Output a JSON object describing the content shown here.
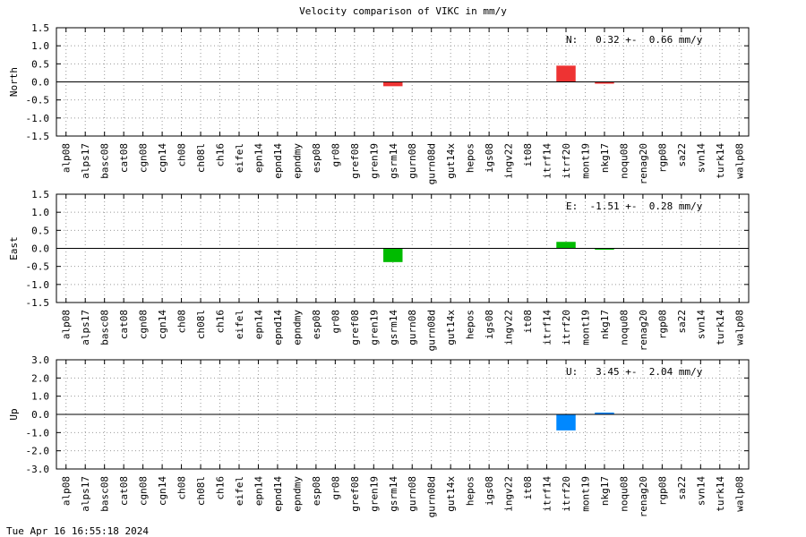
{
  "title": "Velocity comparison of VIKC in mm/y",
  "timestamp": "Tue Apr 16 16:55:18 2024",
  "chart_data": [
    {
      "type": "bar",
      "ylabel": "North",
      "ylim": [
        -1.5,
        1.5
      ],
      "yticks": [
        "1.5",
        "1.0",
        "0.5",
        "0.0",
        "-0.5",
        "-1.0",
        "-1.5"
      ],
      "grid": true,
      "annotation": "N:   0.32 +-  0.66 mm/y",
      "color": "#ee3333",
      "categories": [
        "alp08",
        "alps17",
        "basc08",
        "cat08",
        "cgn08",
        "cgn14",
        "ch08",
        "ch08l",
        "ch16",
        "eifel",
        "epn14",
        "epnd14",
        "epndmy",
        "esp08",
        "gr08",
        "gref08",
        "gren19",
        "gsrm14",
        "gurn08",
        "gurn08d",
        "gut14x",
        "hepos",
        "igs08",
        "ingv22",
        "it08",
        "itrf14",
        "itrf20",
        "mont19",
        "nkg17",
        "noqu08",
        "renag20",
        "rgp08",
        "sa22",
        "svn14",
        "turk14",
        "walp08"
      ],
      "values": [
        null,
        null,
        null,
        null,
        null,
        null,
        null,
        null,
        null,
        null,
        null,
        null,
        null,
        null,
        null,
        null,
        null,
        -0.12,
        null,
        null,
        null,
        null,
        null,
        null,
        null,
        null,
        0.45,
        null,
        -0.05,
        null,
        null,
        null,
        null,
        null,
        null,
        null
      ]
    },
    {
      "type": "bar",
      "ylabel": "East",
      "ylim": [
        -1.5,
        1.5
      ],
      "yticks": [
        "1.5",
        "1.0",
        "0.5",
        "0.0",
        "-0.5",
        "-1.0",
        "-1.5"
      ],
      "grid": true,
      "annotation": "E:  -1.51 +-  0.28 mm/y",
      "color": "#00bb00",
      "categories": [
        "alp08",
        "alps17",
        "basc08",
        "cat08",
        "cgn08",
        "cgn14",
        "ch08",
        "ch08l",
        "ch16",
        "eifel",
        "epn14",
        "epnd14",
        "epndmy",
        "esp08",
        "gr08",
        "gref08",
        "gren19",
        "gsrm14",
        "gurn08",
        "gurn08d",
        "gut14x",
        "hepos",
        "igs08",
        "ingv22",
        "it08",
        "itrf14",
        "itrf20",
        "mont19",
        "nkg17",
        "noqu08",
        "renag20",
        "rgp08",
        "sa22",
        "svn14",
        "turk14",
        "walp08"
      ],
      "values": [
        null,
        null,
        null,
        null,
        null,
        null,
        null,
        null,
        null,
        null,
        null,
        null,
        null,
        null,
        null,
        null,
        null,
        -0.38,
        null,
        null,
        null,
        null,
        null,
        null,
        null,
        null,
        0.18,
        null,
        -0.03,
        null,
        null,
        null,
        null,
        null,
        null,
        null
      ]
    },
    {
      "type": "bar",
      "ylabel": "Up",
      "ylim": [
        -3.0,
        3.0
      ],
      "yticks": [
        "3.0",
        "2.0",
        "1.0",
        "0.0",
        "-1.0",
        "-2.0",
        "-3.0"
      ],
      "grid": true,
      "annotation": "U:   3.45 +-  2.04 mm/y",
      "color": "#0088ff",
      "categories": [
        "alp08",
        "alps17",
        "basc08",
        "cat08",
        "cgn08",
        "cgn14",
        "ch08",
        "ch08l",
        "ch16",
        "eifel",
        "epn14",
        "epnd14",
        "epndmy",
        "esp08",
        "gr08",
        "gref08",
        "gren19",
        "gsrm14",
        "gurn08",
        "gurn08d",
        "gut14x",
        "hepos",
        "igs08",
        "ingv22",
        "it08",
        "itrf14",
        "itrf20",
        "mont19",
        "nkg17",
        "noqu08",
        "renag20",
        "rgp08",
        "sa22",
        "svn14",
        "turk14",
        "walp08"
      ],
      "values": [
        null,
        null,
        null,
        null,
        null,
        null,
        null,
        null,
        null,
        null,
        null,
        null,
        null,
        null,
        null,
        null,
        null,
        null,
        null,
        null,
        null,
        null,
        null,
        null,
        null,
        null,
        -0.88,
        null,
        0.1,
        null,
        null,
        null,
        null,
        null,
        null,
        null
      ]
    }
  ]
}
